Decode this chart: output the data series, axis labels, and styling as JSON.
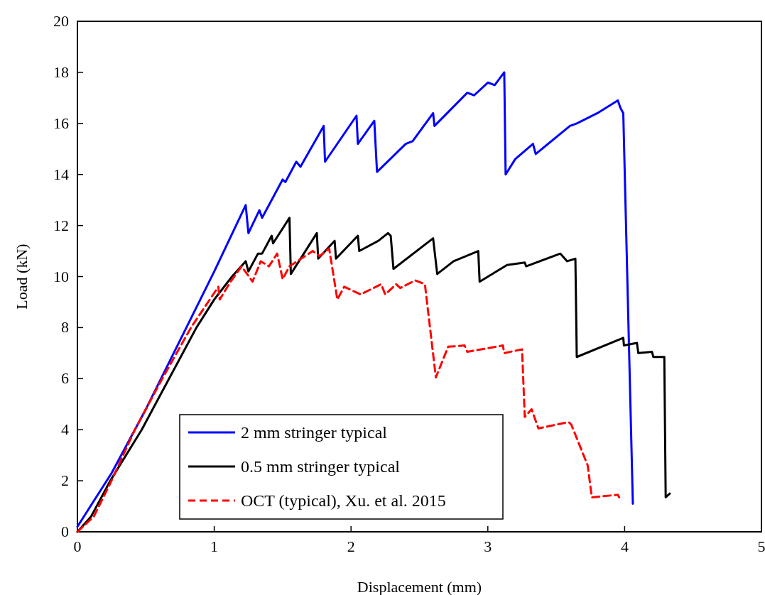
{
  "chart_data": {
    "type": "line",
    "xlabel": "Displacement (mm)",
    "ylabel": "Load (kN)",
    "xlim": [
      0,
      5
    ],
    "ylim": [
      0,
      20
    ],
    "xticks": [
      0,
      1,
      2,
      3,
      4,
      5
    ],
    "yticks": [
      0,
      2,
      4,
      6,
      8,
      10,
      12,
      14,
      16,
      18,
      20
    ],
    "grid": false,
    "legend": "bottom",
    "marker": "none",
    "series": [
      {
        "name": "2 mm stringer typical",
        "color": "#0000ff",
        "line_style": "solid",
        "x": [
          0,
          0.25,
          0.5,
          0.75,
          1,
          1.23,
          1.25,
          1.33,
          1.35,
          1.5,
          1.52,
          1.6,
          1.63,
          1.8,
          1.81,
          2.04,
          2.05,
          2.17,
          2.19,
          2.4,
          2.45,
          2.6,
          2.61,
          2.85,
          2.9,
          3.0,
          3.05,
          3.12,
          3.13,
          3.2,
          3.33,
          3.35,
          3.6,
          3.65,
          3.8,
          3.95,
          3.97,
          3.99,
          4.06
        ],
        "values": [
          0.2,
          2.3,
          4.8,
          7.5,
          10.2,
          12.8,
          11.7,
          12.6,
          12.3,
          13.8,
          13.7,
          14.5,
          14.3,
          15.9,
          14.5,
          16.3,
          15.2,
          16.1,
          14.1,
          15.2,
          15.3,
          16.4,
          15.9,
          17.2,
          17.1,
          17.6,
          17.5,
          18.0,
          14.0,
          14.6,
          15.2,
          14.8,
          15.9,
          16.0,
          16.4,
          16.9,
          16.6,
          16.4,
          1.1
        ]
      },
      {
        "name": "0.5 mm stringer typical",
        "color": "#000000",
        "line_style": "solid",
        "x": [
          0,
          0.1,
          0.24,
          0.47,
          0.67,
          0.87,
          1.0,
          1.13,
          1.23,
          1.25,
          1.32,
          1.35,
          1.42,
          1.43,
          1.55,
          1.56,
          1.75,
          1.76,
          1.88,
          1.89,
          2.05,
          2.06,
          2.2,
          2.27,
          2.29,
          2.31,
          2.6,
          2.63,
          2.75,
          2.93,
          2.94,
          3.14,
          3.27,
          3.28,
          3.53,
          3.58,
          3.64,
          3.65,
          3.99,
          3.995,
          4.09,
          4.1,
          4.2,
          4.21,
          4.29,
          4.3,
          4.33
        ],
        "values": [
          0,
          0.6,
          2,
          4,
          6,
          8,
          9.1,
          10,
          10.6,
          10.2,
          10.9,
          10.9,
          11.6,
          11.3,
          12.3,
          10.1,
          11.7,
          10.7,
          11.4,
          10.7,
          11.6,
          11.0,
          11.4,
          11.7,
          11.6,
          10.3,
          11.5,
          10.1,
          10.6,
          11.0,
          9.8,
          10.45,
          10.55,
          10.4,
          10.9,
          10.6,
          10.7,
          6.85,
          7.6,
          7.3,
          7.4,
          7.0,
          7.05,
          6.85,
          6.85,
          1.35,
          1.5
        ]
      },
      {
        "name": "OCT (typical), Xu. et al. 2015",
        "color": "#ff0000",
        "line_style": "dashed",
        "x": [
          0,
          0.12,
          0.24,
          0.42,
          0.62,
          0.83,
          1.03,
          1.04,
          1.12,
          1.2,
          1.28,
          1.34,
          1.4,
          1.46,
          1.5,
          1.55,
          1.72,
          1.77,
          1.84,
          1.9,
          1.95,
          2.03,
          2.07,
          2.22,
          2.25,
          2.33,
          2.36,
          2.47,
          2.54,
          2.62,
          2.71,
          2.83,
          2.85,
          3.11,
          3.12,
          3.25,
          3.27,
          3.32,
          3.37,
          3.59,
          3.61,
          3.73,
          3.76,
          3.95,
          3.96
        ],
        "values": [
          0,
          0.6,
          1.9,
          4,
          6,
          8,
          9.6,
          9.1,
          9.8,
          10.4,
          9.8,
          10.6,
          10.4,
          10.9,
          9.9,
          10.4,
          11.0,
          10.8,
          11.1,
          9.1,
          9.6,
          9.4,
          9.3,
          9.7,
          9.3,
          9.7,
          9.55,
          9.85,
          9.7,
          6.05,
          7.25,
          7.3,
          7.05,
          7.3,
          7.0,
          7.15,
          4.5,
          4.8,
          4.05,
          4.3,
          4.2,
          2.6,
          1.35,
          1.45,
          1.35
        ]
      }
    ]
  }
}
